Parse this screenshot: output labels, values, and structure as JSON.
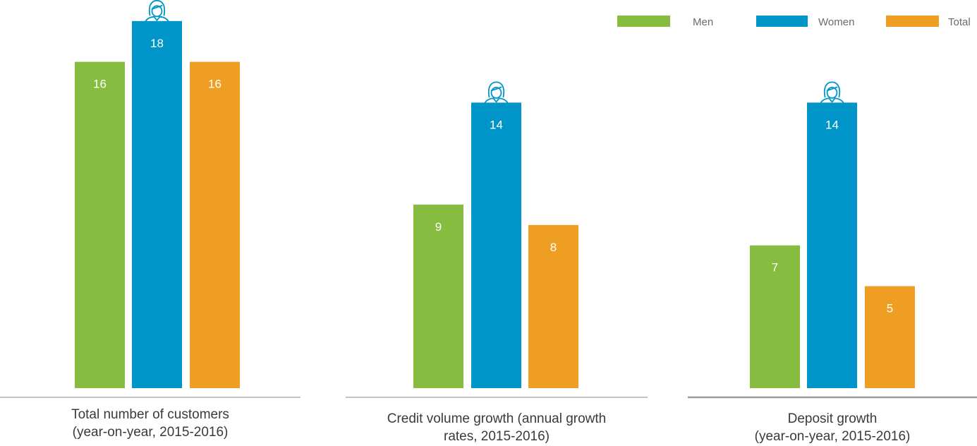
{
  "legend": [
    {
      "label": "Men",
      "color": "#86BC40"
    },
    {
      "label": "Women",
      "color": "#0095C8"
    },
    {
      "label": "Total",
      "color": "#EE9E22"
    }
  ],
  "icons": {
    "highlight_marker": "woman-icon"
  },
  "chart_data": [
    {
      "type": "bar",
      "title": "Total number of customers (year-on-year, 2015-2016)",
      "title_lines": [
        "Total number of customers",
        "(year-on-year, 2015-2016)"
      ],
      "categories": [
        "Men",
        "Women",
        "Total"
      ],
      "values": [
        16,
        18,
        16
      ],
      "highlight": "Women",
      "ylim": [
        0,
        20
      ]
    },
    {
      "type": "bar",
      "title": "Credit volume growth (annual growth rates, 2015-2016)",
      "title_lines": [
        "Credit volume growth (annual growth",
        "rates, 2015-2016)"
      ],
      "categories": [
        "Men",
        "Women",
        "Total"
      ],
      "values": [
        9,
        14,
        8
      ],
      "highlight": "Women",
      "ylim": [
        0,
        20
      ]
    },
    {
      "type": "bar",
      "title": "Deposit growth (year-on-year, 2015-2016)",
      "title_lines": [
        "Deposit growth",
        "(year-on-year, 2015-2016)"
      ],
      "categories": [
        "Men",
        "Women",
        "Total"
      ],
      "values": [
        7,
        14,
        5
      ],
      "highlight": "Women",
      "ylim": [
        0,
        20
      ]
    }
  ]
}
